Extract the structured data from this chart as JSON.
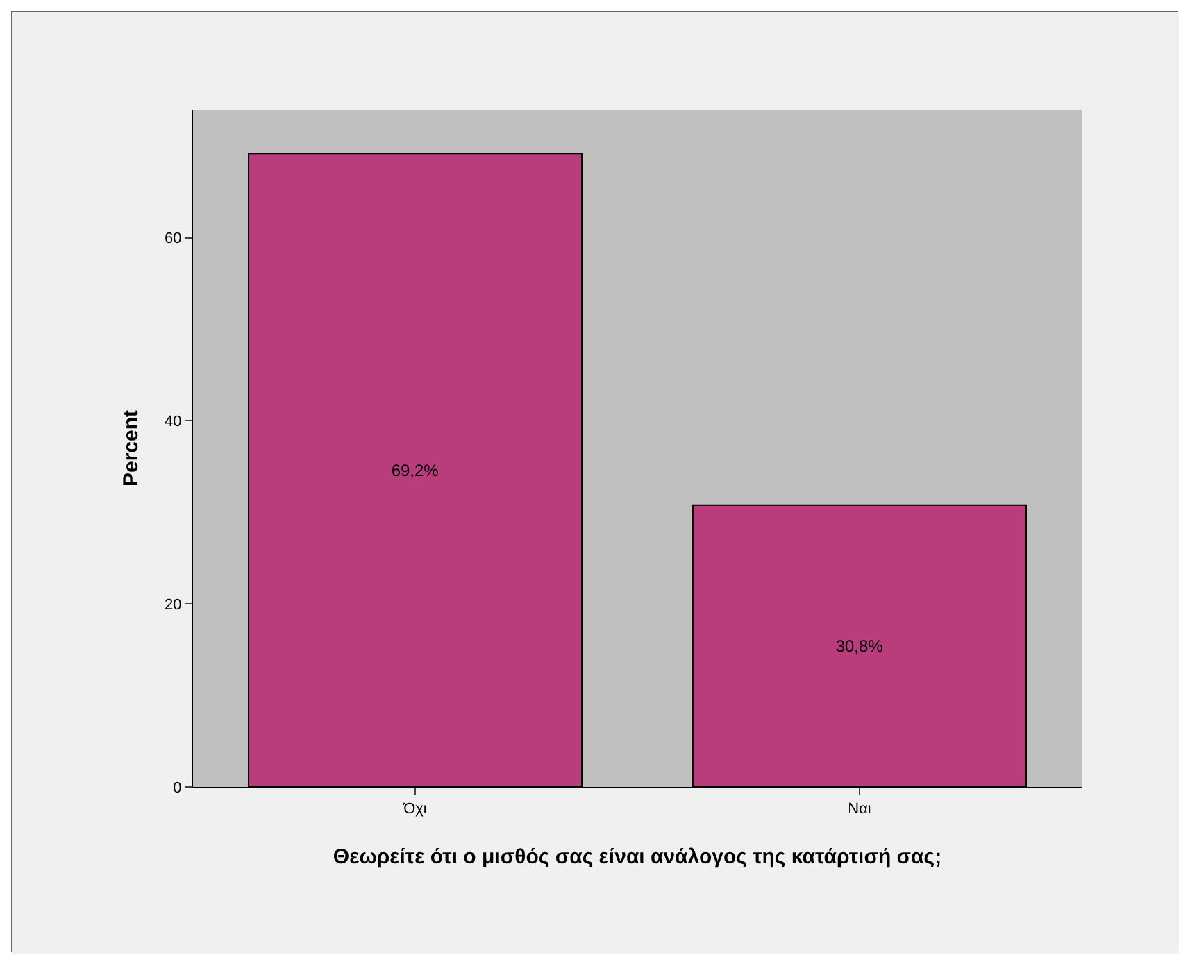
{
  "chart_data": {
    "type": "bar",
    "xlabel": "Θεωρείτε ότι ο μισθός σας είναι ανάλογος της κατάρτισή σας;",
    "ylabel": "Percent",
    "categories": [
      "Όχι",
      "Ναι"
    ],
    "values": [
      69.2,
      30.8
    ],
    "value_labels": [
      "69,2%",
      "30,8%"
    ],
    "color": "#b93d7b",
    "ylim": [
      0,
      74
    ],
    "yticks": [
      0,
      20,
      40,
      60
    ]
  }
}
